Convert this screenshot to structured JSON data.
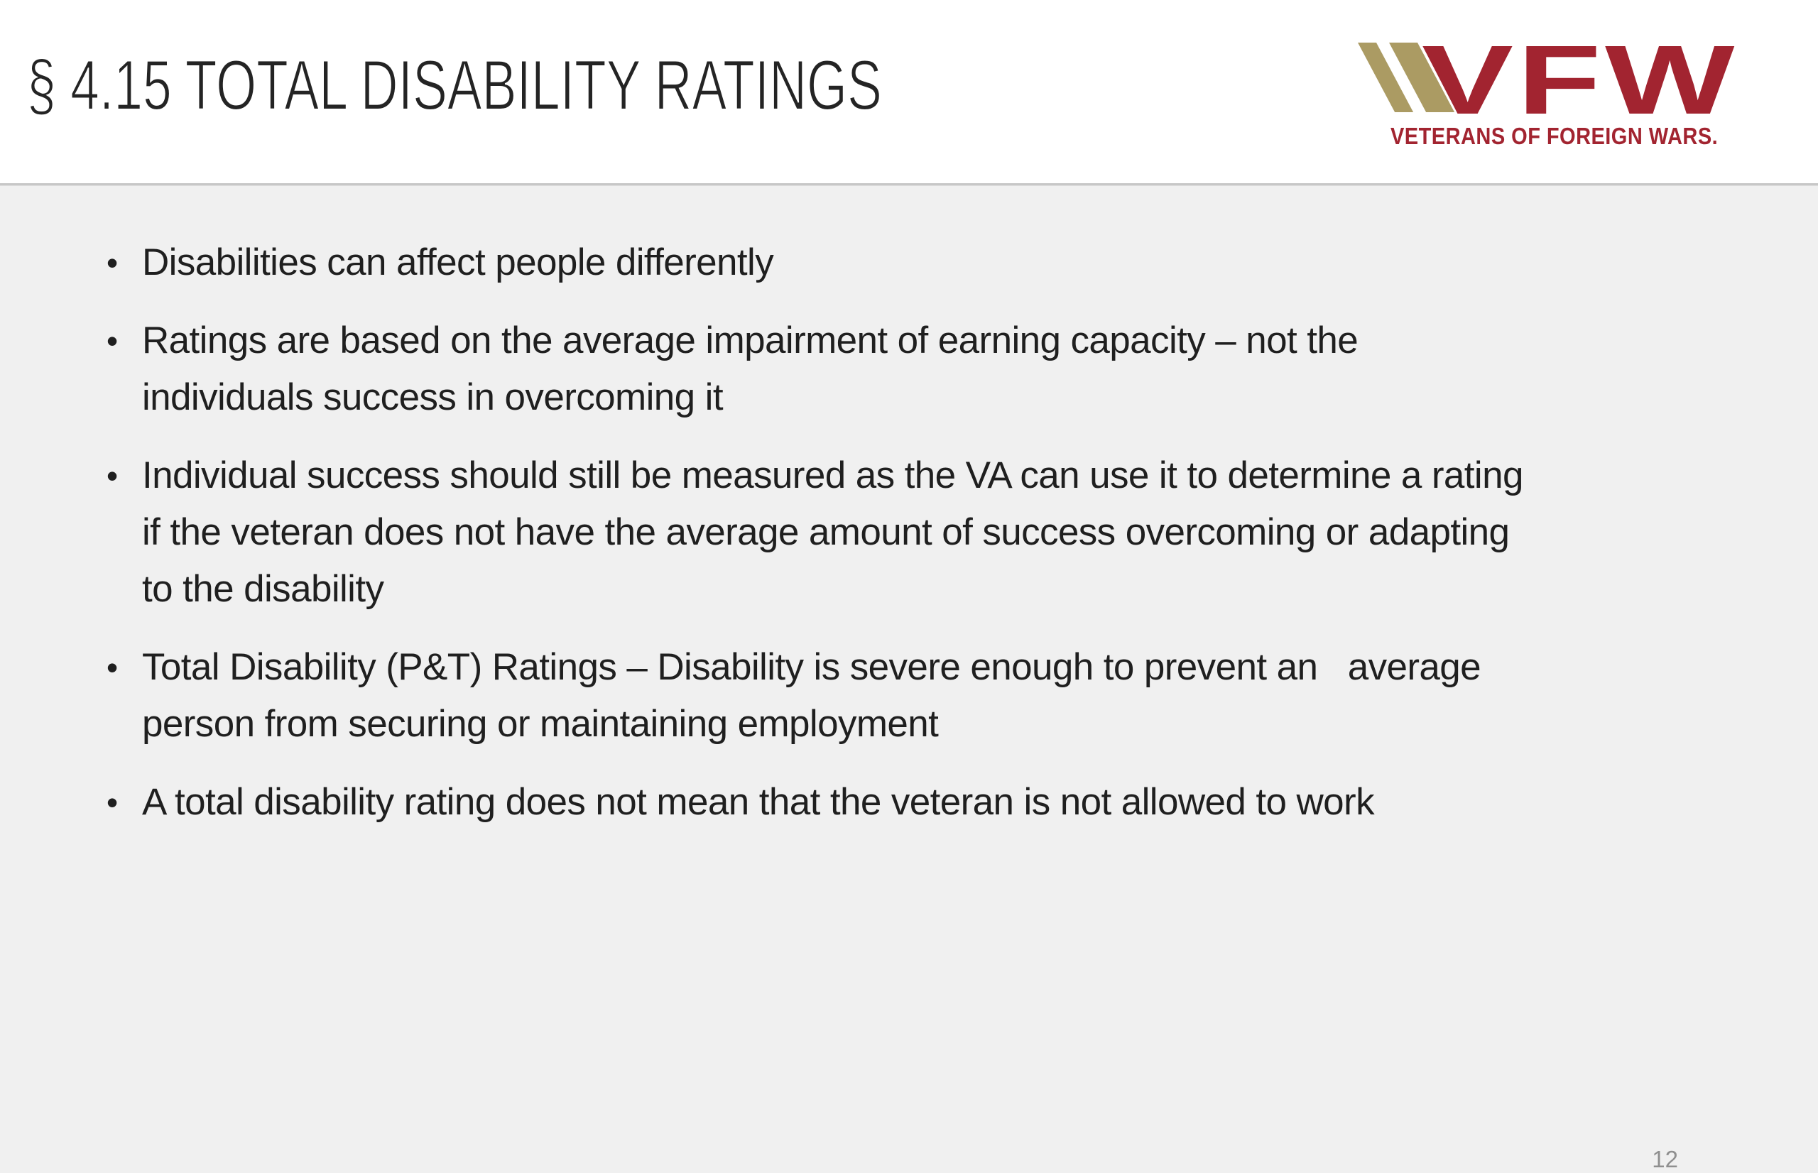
{
  "slide": {
    "title": "§ 4.15 TOTAL DISABILITY RATINGS",
    "bullet_char": "•",
    "bullets": [
      {
        "text": "Disabilities can affect people differently",
        "lines": [
          "Disabilities can affect people differently"
        ]
      },
      {
        "text": "Ratings are based on the average impairment of earning capacity – not the individuals success in overcoming it",
        "lines": [
          "Ratings are based on the average impairment of earning capacity – not the",
          "individuals success in overcoming it"
        ]
      },
      {
        "text": "Individual success should still be measured as the VA can use it to determine a rating if the veteran does not have the average amount of success overcoming or adapting to the disability",
        "lines": [
          "Individual success should still be measured as the VA can use it to determine a rating",
          "if the veteran does not have the average amount of success overcoming or adapting",
          "to the disability"
        ]
      },
      {
        "text": "Total Disability (P&T) Ratings – Disability is severe enough to prevent an   average person from securing or maintaining employment",
        "lines": [
          "Total Disability (P&T) Ratings – Disability is severe enough to prevent an   average",
          "person from securing or maintaining employment"
        ]
      },
      {
        "text": "A total disability rating does not mean that the veteran is not allowed to work",
        "lines": [
          "A total disability rating does not mean that the veteran is not allowed to work"
        ]
      }
    ],
    "logo": {
      "acronym": "VFW",
      "tagline": "VETERANS OF FOREIGN WARS.",
      "colors": {
        "brand_red": "#a22430",
        "brand_gold": "#ab9b63"
      }
    },
    "page_number": "12",
    "colors": {
      "header_background": "#ffffff",
      "body_background": "#f0f0f0",
      "divider_gray": "#c7c7c7",
      "text": "#1f1f1f",
      "page_number_gray": "#8f8f8f"
    }
  }
}
